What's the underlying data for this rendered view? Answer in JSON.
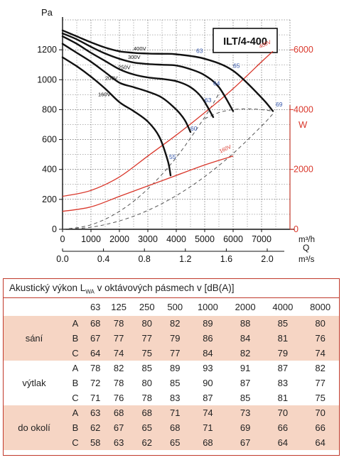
{
  "chart_data": {
    "type": "line",
    "title": "ILT/4-400",
    "y_left_label": "Pa",
    "y_right_label": "W",
    "x_label_top": "m³/h",
    "x_label_mid": "Q",
    "x_label_bottom": "m³/s",
    "x_ticks": [
      "0",
      "1000",
      "2000",
      "3000",
      "4000",
      "5000",
      "6000",
      "7000"
    ],
    "x2_ticks": [
      "0.0",
      "0.4",
      "0.8",
      "1.2",
      "1.6",
      "2.0"
    ],
    "y_ticks": [
      "0",
      "200",
      "400",
      "600",
      "800",
      "1000",
      "1200"
    ],
    "y2_ticks": [
      "0",
      "2000",
      "4000",
      "6000"
    ],
    "xlim": [
      0,
      8000
    ],
    "ylim": [
      0,
      1400
    ],
    "y2lim": [
      0,
      7000
    ],
    "grid": true,
    "pressure_series": [
      {
        "name": "400V",
        "x": [
          0,
          500,
          1000,
          1500,
          2000,
          2500,
          3000,
          3500,
          4000,
          5000,
          6000,
          7000,
          7400
        ],
        "values": [
          1330,
          1290,
          1250,
          1215,
          1190,
          1180,
          1175,
          1173,
          1170,
          1140,
          1060,
          880,
          790
        ]
      },
      {
        "name": "300V",
        "x": [
          0,
          500,
          1000,
          1500,
          2000,
          2500,
          3000,
          3500,
          4000,
          4500,
          5000,
          5500,
          6000
        ],
        "values": [
          1310,
          1270,
          1220,
          1175,
          1140,
          1115,
          1105,
          1100,
          1095,
          1070,
          1030,
          950,
          790
        ]
      },
      {
        "name": "250V",
        "x": [
          0,
          500,
          1000,
          1500,
          2000,
          2500,
          3000,
          3500,
          4000,
          4500,
          4900,
          5300
        ],
        "values": [
          1290,
          1240,
          1180,
          1125,
          1070,
          1035,
          1015,
          1005,
          990,
          950,
          880,
          750
        ]
      },
      {
        "name": "200V",
        "x": [
          0,
          500,
          1000,
          1500,
          2000,
          2500,
          3000,
          3500,
          4000,
          4300,
          4500
        ],
        "values": [
          1240,
          1180,
          1120,
          1050,
          980,
          950,
          920,
          880,
          800,
          730,
          650
        ]
      },
      {
        "name": "160V",
        "x": [
          0,
          500,
          1000,
          1500,
          2000,
          2500,
          3000,
          3400,
          3700,
          3800
        ],
        "values": [
          1150,
          1090,
          1020,
          940,
          850,
          790,
          720,
          620,
          460,
          360
        ]
      }
    ],
    "curve_end_labels": [
      "63",
      "65",
      "64",
      "63",
      "60",
      "55",
      "69"
    ],
    "power_series": [
      {
        "name": "400V",
        "x": [
          0,
          1000,
          2000,
          3000,
          4000,
          5000,
          6000,
          7000,
          7400
        ],
        "values": [
          1100,
          1300,
          1750,
          2450,
          3150,
          3900,
          4700,
          5600,
          5950
        ]
      },
      {
        "name": "160V",
        "x": [
          0,
          1000,
          2000,
          3000,
          4000,
          5000,
          6000
        ],
        "values": [
          600,
          750,
          1100,
          1450,
          1800,
          2150,
          2450
        ]
      }
    ],
    "resistance_lines": [
      {
        "x": [
          0,
          1000,
          2000,
          3000,
          4000,
          5000,
          6000,
          7000,
          7400
        ],
        "values": [
          0,
          14,
          56,
          126,
          225,
          352,
          507,
          690,
          772
        ]
      },
      {
        "x": [
          0,
          1000,
          2000,
          3000,
          4000,
          5000,
          5500
        ],
        "values": [
          0,
          30,
          120,
          270,
          480,
          750,
          907
        ]
      }
    ],
    "efficiency_curve": {
      "x": [
        5000,
        5500,
        6000,
        6500,
        7000,
        7400
      ],
      "values": [
        740,
        780,
        800,
        805,
        800,
        790
      ]
    }
  },
  "table": {
    "title_prefix": "Akustický výkon L",
    "title_sub": "WA",
    "title_suffix": " v oktávových pásmech v [dB(A)]",
    "freqs": [
      "63",
      "125",
      "250",
      "500",
      "1000",
      "2000",
      "4000",
      "8000"
    ],
    "groups": [
      {
        "name": "sání",
        "rows": [
          {
            "letter": "A",
            "values": [
              "68",
              "78",
              "80",
              "82",
              "89",
              "88",
              "85",
              "80"
            ]
          },
          {
            "letter": "B",
            "values": [
              "67",
              "77",
              "77",
              "79",
              "86",
              "84",
              "81",
              "76"
            ]
          },
          {
            "letter": "C",
            "values": [
              "64",
              "74",
              "75",
              "77",
              "84",
              "82",
              "79",
              "74"
            ]
          }
        ]
      },
      {
        "name": "výtlak",
        "rows": [
          {
            "letter": "A",
            "values": [
              "78",
              "82",
              "85",
              "89",
              "93",
              "91",
              "87",
              "82"
            ]
          },
          {
            "letter": "B",
            "values": [
              "72",
              "78",
              "80",
              "85",
              "90",
              "87",
              "83",
              "77"
            ]
          },
          {
            "letter": "C",
            "values": [
              "71",
              "76",
              "78",
              "83",
              "87",
              "85",
              "81",
              "75"
            ]
          }
        ]
      },
      {
        "name": "do okolí",
        "rows": [
          {
            "letter": "A",
            "values": [
              "63",
              "68",
              "68",
              "71",
              "74",
              "73",
              "70",
              "70"
            ]
          },
          {
            "letter": "B",
            "values": [
              "62",
              "67",
              "65",
              "68",
              "71",
              "69",
              "66",
              "66"
            ]
          },
          {
            "letter": "C",
            "values": [
              "58",
              "63",
              "62",
              "65",
              "68",
              "67",
              "64",
              "64"
            ]
          }
        ]
      }
    ]
  },
  "colors": {
    "curve": "#111111",
    "power": "#d9372b",
    "right_axis": "#d9372b",
    "shade": "#f6d5c4",
    "frame": "#c0392b",
    "speed_label": "#3355aa"
  }
}
